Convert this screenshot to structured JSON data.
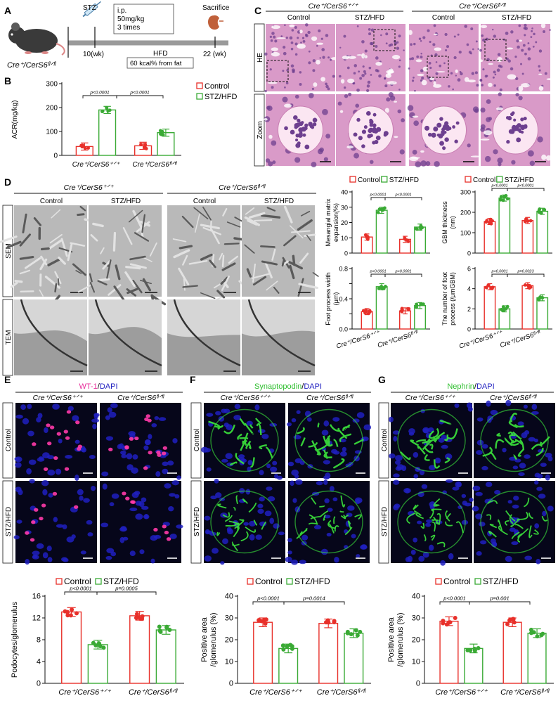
{
  "colors": {
    "control": "#e8302a",
    "stz": "#3aaa35",
    "hep1": "#d99ac8",
    "hep2": "#f2c4e0",
    "nuc": "#6d3f8f",
    "wt1": "#ff3aa8",
    "dapi": "#2020c0",
    "gfp": "#3ce63c"
  },
  "panel_letters": [
    "A",
    "B",
    "C",
    "D",
    "E",
    "F",
    "G"
  ],
  "genotype_wt": "Cre⁺/CerS6⁺ᐟ⁺",
  "genotype_ko": "Cre⁺/CerS6ᶠˡᐟᶠˡ",
  "groups": {
    "control": "Control",
    "stz": "STZ/HFD"
  },
  "timeline": {
    "mouse_label": "Cre⁺/CerS6ᶠˡᐟᶠˡ",
    "stz": "STZ",
    "ip_lines": [
      "i.p.",
      "50mg/kg",
      "3 times"
    ],
    "week10": "10(wk)",
    "week22": "22 (wk)",
    "hfd": "HFD",
    "hfd_detail": "60 kcal% from fat",
    "sacrifice": "Sacrifice"
  },
  "row_labels": {
    "he": "HE",
    "zoom": "Zoom",
    "sem": "SEM",
    "tem": "TEM",
    "control": "Control",
    "stz": "STZ/HFD"
  },
  "stain_labels": {
    "E": {
      "marker": "WT-1",
      "sep": "/",
      "dapi": "DAPI"
    },
    "F": {
      "marker": "Synaptopodin",
      "sep": "/",
      "dapi": "DAPI"
    },
    "G": {
      "marker": "Nephrin",
      "sep": "/",
      "dapi": "DAPI"
    }
  },
  "chart_data": [
    {
      "id": "B",
      "type": "bar",
      "ylabel": "ACR(mg/kg)",
      "ylim": [
        0,
        300
      ],
      "yticks": [
        0,
        100,
        200,
        300
      ],
      "categories": [
        "Cre⁺/CerS6⁺ᐟ⁺",
        "Cre⁺/CerS6ᶠˡᐟᶠˡ"
      ],
      "series": [
        {
          "name": "Control",
          "values": [
            37,
            40
          ]
        },
        {
          "name": "STZ/HFD",
          "values": [
            190,
            95
          ]
        }
      ],
      "legend": "top-right",
      "pvalues": [
        "p<0.0001",
        "p<0.0001"
      ]
    },
    {
      "id": "D1",
      "type": "bar",
      "ylabel": [
        "Mesangial matrix",
        "expansion(%)"
      ],
      "ylim": [
        0,
        40
      ],
      "yticks": [
        0,
        10,
        20,
        30,
        40
      ],
      "categories": [
        "Cre⁺/CerS6⁺ᐟ⁺",
        "Cre⁺/CerS6ᶠˡᐟᶠˡ"
      ],
      "series": [
        {
          "name": "Control",
          "values": [
            10.5,
            9
          ]
        },
        {
          "name": "STZ/HFD",
          "values": [
            28,
            17
          ]
        }
      ],
      "legend": "top",
      "pvalues": [
        "p<0.0001",
        "p<0.0001"
      ]
    },
    {
      "id": "D2",
      "type": "bar",
      "ylabel": [
        "GBM thickness",
        "(nm)"
      ],
      "ylim": [
        0,
        300
      ],
      "yticks": [
        0,
        100,
        200,
        300
      ],
      "categories": [
        "Cre⁺/CerS6⁺ᐟ⁺",
        "Cre⁺/CerS6ᶠˡᐟᶠˡ"
      ],
      "series": [
        {
          "name": "Control",
          "values": [
            155,
            160
          ]
        },
        {
          "name": "STZ/HFD",
          "values": [
            270,
            205
          ]
        }
      ],
      "legend": "top",
      "pvalues": [
        "p<0.0001",
        "p<0.0001"
      ]
    },
    {
      "id": "D3",
      "type": "bar",
      "ylabel": [
        "Foot process width",
        "(μm)"
      ],
      "ylim": [
        0,
        0.8
      ],
      "yticks": [
        0,
        0.2,
        0.4,
        0.6,
        0.8
      ],
      "yticklabels": [
        "0.0",
        "",
        "0.4",
        "",
        "0.8"
      ],
      "categories": [
        "Cre⁺/CerS6⁺ᐟ⁺",
        "Cre⁺/CerS6ᶠˡᐟᶠˡ"
      ],
      "series": [
        {
          "name": "Control",
          "values": [
            0.23,
            0.24
          ]
        },
        {
          "name": "STZ/HFD",
          "values": [
            0.56,
            0.31
          ]
        }
      ],
      "pvalues": [
        "p<0.0001",
        "p<0.0001"
      ]
    },
    {
      "id": "D4",
      "type": "bar",
      "ylabel": [
        "The number of foot",
        "process (/μmGBM)"
      ],
      "ylim": [
        0,
        6
      ],
      "yticks": [
        0,
        2,
        4,
        6
      ],
      "categories": [
        "Cre⁺/CerS6⁺ᐟ⁺",
        "Cre⁺/CerS6ᶠˡᐟᶠˡ"
      ],
      "series": [
        {
          "name": "Control",
          "values": [
            4.2,
            4.3
          ]
        },
        {
          "name": "STZ/HFD",
          "values": [
            2.0,
            3.1
          ]
        }
      ],
      "pvalues": [
        "p<0.0001",
        "p=0.0023"
      ]
    },
    {
      "id": "E",
      "type": "bar",
      "ylabel": "Podocytes/glomerulus",
      "ylim": [
        0,
        16
      ],
      "yticks": [
        0,
        4,
        8,
        12,
        16
      ],
      "categories": [
        "Cre⁺/CerS6⁺ᐟ⁺",
        "Cre⁺/CerS6ᶠˡᐟᶠˡ"
      ],
      "series": [
        {
          "name": "Control",
          "values": [
            13.1,
            12.4
          ]
        },
        {
          "name": "STZ/HFD",
          "values": [
            7.1,
            9.8
          ]
        }
      ],
      "legend": "top",
      "pvalues": [
        "p<0.0001",
        "p=0.0005"
      ]
    },
    {
      "id": "F",
      "type": "bar",
      "ylabel": [
        "Positive area",
        "/glomerulus (%)"
      ],
      "ylim": [
        0,
        40
      ],
      "yticks": [
        0,
        10,
        20,
        30,
        40
      ],
      "categories": [
        "Cre⁺/CerS6⁺ᐟ⁺",
        "Cre⁺/CerS6ᶠˡᐟᶠˡ"
      ],
      "series": [
        {
          "name": "Control",
          "values": [
            28,
            27.5
          ]
        },
        {
          "name": "STZ/HFD",
          "values": [
            16,
            23
          ]
        }
      ],
      "legend": "top",
      "pvalues": [
        "p<0.0001",
        "p=0.0014"
      ]
    },
    {
      "id": "G",
      "type": "bar",
      "ylabel": [
        "Positive area",
        "/glomerulus (%)"
      ],
      "ylim": [
        0,
        40
      ],
      "yticks": [
        0,
        10,
        20,
        30,
        40
      ],
      "categories": [
        "Cre⁺/CerS6⁺ᐟ⁺",
        "Cre⁺/CerS6ᶠˡᐟᶠˡ"
      ],
      "series": [
        {
          "name": "Control",
          "values": [
            28.5,
            28
          ]
        },
        {
          "name": "STZ/HFD",
          "values": [
            16,
            23
          ]
        }
      ],
      "legend": "top",
      "pvalues": [
        "p<0.0001",
        "p=0.001"
      ]
    }
  ]
}
